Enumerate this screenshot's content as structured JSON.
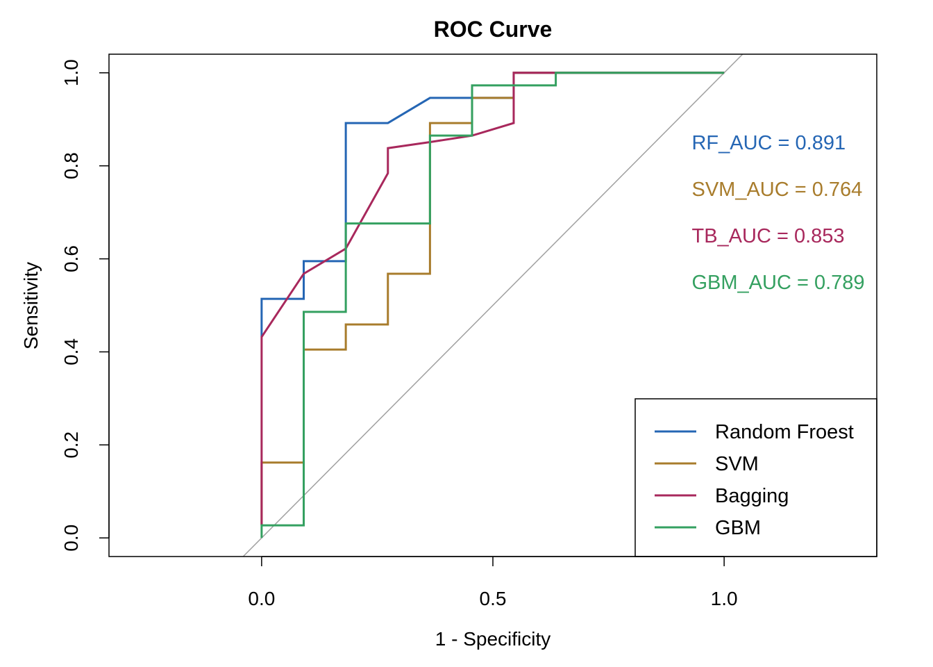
{
  "chart_data": {
    "type": "line",
    "title": "ROC Curve",
    "xlabel": "1 - Specificity",
    "ylabel": "Sensitivity",
    "xlim": [
      -0.33,
      1.33
    ],
    "ylim": [
      -0.04,
      1.04
    ],
    "xticks": [
      "0.0",
      "0.5",
      "1.0"
    ],
    "yticks": [
      "0.0",
      "0.2",
      "0.4",
      "0.6",
      "0.8",
      "1.0"
    ],
    "grid": false,
    "legend_position": "bottom-right",
    "reference_line": {
      "color": "#a0a0a0",
      "points": [
        [
          -0.04,
          -0.04
        ],
        [
          1.04,
          1.04
        ]
      ]
    },
    "series": [
      {
        "name": "Random Froest",
        "color": "#2566b4",
        "points": [
          [
            0,
            0.432
          ],
          [
            0,
            0.514
          ],
          [
            0.091,
            0.514
          ],
          [
            0.091,
            0.595
          ],
          [
            0.182,
            0.595
          ],
          [
            0.182,
            0.892
          ],
          [
            0.273,
            0.892
          ],
          [
            0.364,
            0.946
          ],
          [
            0.545,
            0.946
          ],
          [
            0.545,
            1.0
          ],
          [
            1.0,
            1.0
          ]
        ]
      },
      {
        "name": "SVM",
        "color": "#a87c2c",
        "points": [
          [
            0,
            0.027
          ],
          [
            0,
            0.162
          ],
          [
            0.091,
            0.162
          ],
          [
            0.091,
            0.405
          ],
          [
            0.182,
            0.405
          ],
          [
            0.182,
            0.459
          ],
          [
            0.273,
            0.459
          ],
          [
            0.273,
            0.568
          ],
          [
            0.364,
            0.568
          ],
          [
            0.364,
            0.892
          ],
          [
            0.455,
            0.892
          ],
          [
            0.455,
            0.946
          ],
          [
            0.545,
            0.946
          ],
          [
            0.545,
            1.0
          ],
          [
            1.0,
            1.0
          ]
        ]
      },
      {
        "name": "Bagging",
        "color": "#a8285c",
        "points": [
          [
            0,
            0.027
          ],
          [
            0,
            0.432
          ],
          [
            0.091,
            0.568
          ],
          [
            0.182,
            0.622
          ],
          [
            0.273,
            0.784
          ],
          [
            0.273,
            0.838
          ],
          [
            0.364,
            0.851
          ],
          [
            0.455,
            0.865
          ],
          [
            0.545,
            0.892
          ],
          [
            0.545,
            1.0
          ],
          [
            1.0,
            1.0
          ]
        ]
      },
      {
        "name": "GBM",
        "color": "#34a060",
        "points": [
          [
            0,
            0.0
          ],
          [
            0,
            0.027
          ],
          [
            0.091,
            0.027
          ],
          [
            0.091,
            0.486
          ],
          [
            0.182,
            0.486
          ],
          [
            0.182,
            0.676
          ],
          [
            0.364,
            0.676
          ],
          [
            0.364,
            0.865
          ],
          [
            0.455,
            0.865
          ],
          [
            0.455,
            0.973
          ],
          [
            0.636,
            0.973
          ],
          [
            0.636,
            1.0
          ],
          [
            1.0,
            1.0
          ]
        ]
      }
    ],
    "annotations": [
      {
        "text": "RF_AUC = 0.891",
        "color": "#2566b4",
        "x": 0.93,
        "y": 0.85
      },
      {
        "text": "SVM_AUC = 0.764",
        "color": "#a87c2c",
        "x": 0.93,
        "y": 0.75
      },
      {
        "text": "TB_AUC = 0.853",
        "color": "#a8285c",
        "x": 0.93,
        "y": 0.65
      },
      {
        "text": "GBM_AUC = 0.789",
        "color": "#34a060",
        "x": 0.93,
        "y": 0.55
      }
    ]
  }
}
